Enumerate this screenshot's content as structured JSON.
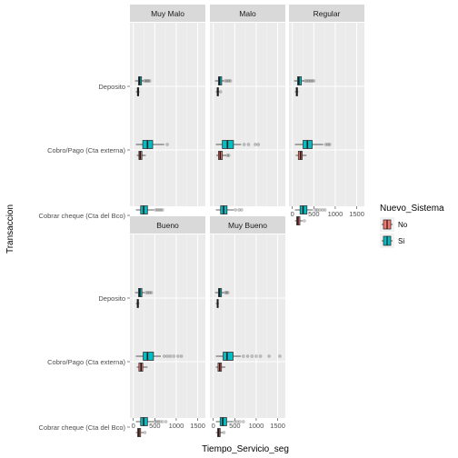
{
  "chart_data": {
    "type": "boxplot",
    "xlabel": "Tiempo_Servicio_seg",
    "ylabel": "Transaccion",
    "xlim": [
      0,
      1600
    ],
    "xticks": [
      0,
      500,
      1000,
      1500
    ],
    "categories": [
      "Deposito",
      "Cobro/Pago (Cta externa)",
      "Cobrar cheque (Cta del Bco)"
    ],
    "legend": {
      "title": "Nuevo_Sistema",
      "position": "right",
      "items": [
        {
          "name": "No",
          "color": "#F8766D"
        },
        {
          "name": "Si",
          "color": "#00BFC4"
        }
      ]
    },
    "facets": [
      {
        "label": "Muy Malo",
        "boxes": [
          {
            "category": "Deposito",
            "group": "Si",
            "min": 40,
            "q1": 120,
            "median": 145,
            "q3": 190,
            "max": 240,
            "outliers": [
              260,
              290,
              320,
              350,
              380
            ]
          },
          {
            "category": "Deposito",
            "group": "No",
            "min": 60,
            "q1": 95,
            "median": 110,
            "q3": 125,
            "max": 145,
            "outliers": []
          },
          {
            "category": "Cobro/Pago (Cta externa)",
            "group": "Si",
            "min": 60,
            "q1": 220,
            "median": 330,
            "q3": 450,
            "max": 720,
            "outliers": [
              790
            ]
          },
          {
            "category": "Cobro/Pago (Cta externa)",
            "group": "No",
            "min": 80,
            "q1": 130,
            "median": 160,
            "q3": 200,
            "max": 290,
            "outliers": []
          },
          {
            "category": "Cobrar cheque (Cta del Bco)",
            "group": "Si",
            "min": 60,
            "q1": 170,
            "median": 240,
            "q3": 330,
            "max": 480,
            "outliers": [
              520,
              560,
              600,
              640,
              680
            ]
          },
          {
            "category": "Cobrar cheque (Cta del Bco)",
            "group": "No",
            "min": 60,
            "q1": 100,
            "median": 135,
            "q3": 170,
            "max": 240,
            "outliers": []
          }
        ]
      },
      {
        "label": "Malo",
        "boxes": [
          {
            "category": "Deposito",
            "group": "Si",
            "min": 40,
            "q1": 120,
            "median": 145,
            "q3": 195,
            "max": 250,
            "outliers": [
              280,
              320,
              360,
              400
            ]
          },
          {
            "category": "Deposito",
            "group": "No",
            "min": 60,
            "q1": 90,
            "median": 105,
            "q3": 120,
            "max": 140,
            "outliers": [
              170
            ]
          },
          {
            "category": "Cobro/Pago (Cta externa)",
            "group": "Si",
            "min": 60,
            "q1": 210,
            "median": 330,
            "q3": 470,
            "max": 650,
            "outliers": [
              720,
              820,
              980,
              1050
            ]
          },
          {
            "category": "Cobro/Pago (Cta externa)",
            "group": "No",
            "min": 70,
            "q1": 120,
            "median": 160,
            "q3": 210,
            "max": 300,
            "outliers": [
              330,
              360
            ]
          },
          {
            "category": "Cobrar cheque (Cta del Bco)",
            "group": "Si",
            "min": 60,
            "q1": 170,
            "median": 240,
            "q3": 320,
            "max": 480,
            "outliers": [
              520,
              600,
              660
            ]
          },
          {
            "category": "Cobrar cheque (Cta del Bco)",
            "group": "No",
            "min": 60,
            "q1": 100,
            "median": 130,
            "q3": 170,
            "max": 240,
            "outliers": []
          }
        ]
      },
      {
        "label": "Regular",
        "boxes": [
          {
            "category": "Deposito",
            "group": "Si",
            "min": 40,
            "q1": 120,
            "median": 150,
            "q3": 210,
            "max": 280,
            "outliers": [
              300,
              340,
              380,
              420,
              460,
              500
            ]
          },
          {
            "category": "Deposito",
            "group": "No",
            "min": 60,
            "q1": 90,
            "median": 105,
            "q3": 120,
            "max": 140,
            "outliers": []
          },
          {
            "category": "Cobro/Pago (Cta externa)",
            "group": "Si",
            "min": 60,
            "q1": 250,
            "median": 350,
            "q3": 460,
            "max": 720,
            "outliers": [
              780,
              830,
              870
            ]
          },
          {
            "category": "Cobro/Pago (Cta externa)",
            "group": "No",
            "min": 80,
            "q1": 140,
            "median": 190,
            "q3": 230,
            "max": 330,
            "outliers": []
          },
          {
            "category": "Cobrar cheque (Cta del Bco)",
            "group": "Si",
            "min": 60,
            "q1": 180,
            "median": 250,
            "q3": 340,
            "max": 480,
            "outliers": [
              540,
              580,
              640,
              700,
              760
            ]
          },
          {
            "category": "Cobrar cheque (Cta del Bco)",
            "group": "No",
            "min": 60,
            "q1": 100,
            "median": 130,
            "q3": 175,
            "max": 240,
            "outliers": [
              280
            ]
          }
        ]
      },
      {
        "label": "Bueno",
        "boxes": [
          {
            "category": "Deposito",
            "group": "Si",
            "min": 40,
            "q1": 120,
            "median": 150,
            "q3": 200,
            "max": 260,
            "outliers": [
              300,
              340,
              380,
              420
            ]
          },
          {
            "category": "Deposito",
            "group": "No",
            "min": 60,
            "q1": 90,
            "median": 105,
            "q3": 120,
            "max": 140,
            "outliers": []
          },
          {
            "category": "Cobro/Pago (Cta externa)",
            "group": "Si",
            "min": 60,
            "q1": 230,
            "median": 330,
            "q3": 470,
            "max": 640,
            "outliers": [
              720,
              790,
              860,
              940,
              1040,
              1120
            ]
          },
          {
            "category": "Cobro/Pago (Cta externa)",
            "group": "No",
            "min": 80,
            "q1": 130,
            "median": 180,
            "q3": 220,
            "max": 330,
            "outliers": []
          },
          {
            "category": "Cobrar cheque (Cta del Bco)",
            "group": "Si",
            "min": 60,
            "q1": 170,
            "median": 240,
            "q3": 330,
            "max": 470,
            "outliers": [
              500,
              540,
              580,
              620,
              680,
              760
            ]
          },
          {
            "category": "Cobrar cheque (Cta del Bco)",
            "group": "No",
            "min": 60,
            "q1": 100,
            "median": 130,
            "q3": 170,
            "max": 240,
            "outliers": [
              270
            ]
          }
        ]
      },
      {
        "label": "Muy Bueno",
        "boxes": [
          {
            "category": "Deposito",
            "group": "Si",
            "min": 40,
            "q1": 120,
            "median": 145,
            "q3": 190,
            "max": 250,
            "outliers": [
              280,
              310,
              340
            ]
          },
          {
            "category": "Deposito",
            "group": "No",
            "min": 60,
            "q1": 90,
            "median": 100,
            "q3": 115,
            "max": 130,
            "outliers": []
          },
          {
            "category": "Cobro/Pago (Cta externa)",
            "group": "Si",
            "min": 60,
            "q1": 230,
            "median": 320,
            "q3": 460,
            "max": 640,
            "outliers": [
              700,
              800,
              900,
              1000,
              1100,
              1300,
              1550
            ]
          },
          {
            "category": "Cobro/Pago (Cta externa)",
            "group": "No",
            "min": 60,
            "q1": 110,
            "median": 150,
            "q3": 190,
            "max": 280,
            "outliers": []
          },
          {
            "category": "Cobrar cheque (Cta del Bco)",
            "group": "Si",
            "min": 60,
            "q1": 160,
            "median": 220,
            "q3": 310,
            "max": 460,
            "outliers": [
              500,
              560,
              620,
              700
            ]
          },
          {
            "category": "Cobrar cheque (Cta del Bco)",
            "group": "No",
            "min": 60,
            "q1": 100,
            "median": 125,
            "q3": 160,
            "max": 220,
            "outliers": [
              250
            ]
          }
        ]
      }
    ]
  }
}
